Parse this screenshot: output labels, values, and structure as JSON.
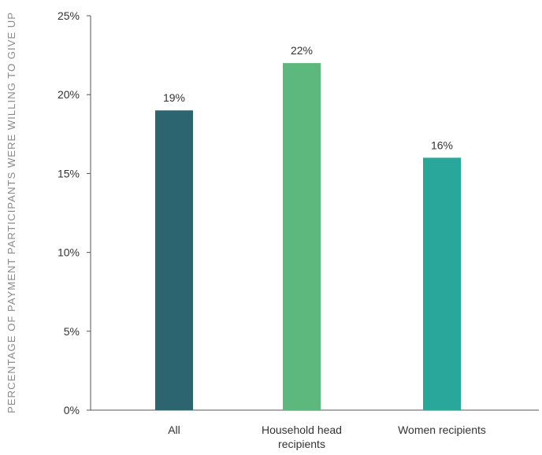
{
  "chart_data": {
    "type": "bar",
    "title": "",
    "xlabel": "",
    "ylabel": "PERCENTAGE OF PAYMENT PARTICIPANTS WERE WILLING TO GIVE UP",
    "ylim": [
      0,
      25
    ],
    "yticks": [
      0,
      5,
      10,
      15,
      20,
      25
    ],
    "ytick_labels": [
      "0%",
      "5%",
      "10%",
      "15%",
      "20%",
      "25%"
    ],
    "grid": false,
    "legend": "none",
    "categories": [
      [
        "All"
      ],
      [
        "Household head",
        "recipients"
      ],
      [
        "Women recipients"
      ]
    ],
    "values": [
      19,
      22,
      16
    ],
    "data_labels": [
      "19%",
      "22%",
      "16%"
    ],
    "colors": [
      "#2c6470",
      "#5db87d",
      "#2aa79b"
    ]
  }
}
